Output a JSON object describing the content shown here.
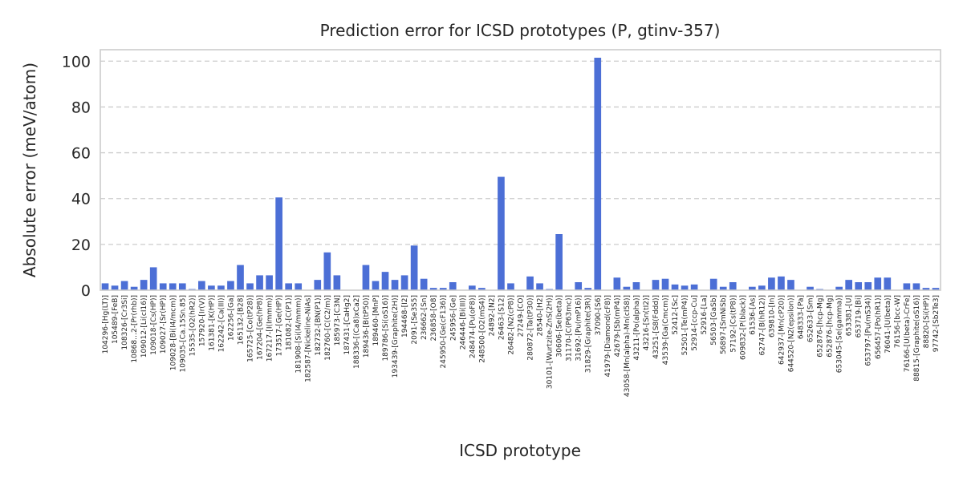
{
  "chart_data": {
    "type": "bar",
    "title": "Prediction error for ICSD prototypes (P, gtinv-357)",
    "xlabel": "ICSD prototype",
    "ylabel": "Absolute error (meV/atom)",
    "ylim": [
      0,
      105
    ],
    "yticks": [
      0,
      20,
      40,
      60,
      80,
      100
    ],
    "grid": "y-dashed",
    "bar_color": "#4c6fd6",
    "categories": [
      "104296-[Hg(LT)]",
      "105489-[FeB]",
      "108326-[Cr3Si]",
      "10868…2-[Pr(rhb)]",
      "109012-[Li(cI16)]",
      "109018-[Cs(HP)]",
      "109027-[Sr(HP)]",
      "109028-[Bi(I4/mcm)]",
      "109035-[Ca.15Sn.85]",
      "15535-[O2(hR2)]",
      "157920-[Ir(V)]",
      "161381-[K(HP)]",
      "162242-[Ca(III)]",
      "162256-[Ga]",
      "165132-[B28]",
      "165725-[Co(tP28)]",
      "167204-[Ge(hP8)]",
      "167217-[I(Immm)]",
      "173517-[Ge(HP)]",
      "181082-[C(P1)]",
      "181908-[Si(I4/mmm)]",
      "182587-[Nickeline-NiAs]",
      "182732-[BN(P1)]",
      "182760-[C(C2/m)]",
      "185973-[C3N]",
      "187431-[CaHg2]",
      "188336-[(Ca8)xCa2]",
      "189436-[B(tP50)]",
      "189460-[MnP]",
      "189786-[Si(oS16)]",
      "193439-[Graphite(2H)]",
      "194468-[I2]",
      "2091-[Se3S5]",
      "236662-[Sn]",
      "236858-[O8]",
      "245950-[Ge(cF136)]",
      "245956-[Ge]",
      "246446-[Bi(III)]",
      "248474-[Pu(oF8)]",
      "248500-[O2(mS4)]",
      "24892-[N2]",
      "26463-[S12]",
      "26482-[N2(cP8)]",
      "27249-[CO]",
      "280872-[Ta(tP30)]",
      "28540-[H2]",
      "30101-[Wurtzite-ZnS(2H)]",
      "30606-[Se(beta)]",
      "31170-[C(P63mc)]",
      "31692-[Pu(mP16)]",
      "31829-[Graphite(3R)]",
      "37090-[S6]",
      "41979-[Diamond(cF8)]",
      "42679-[Sb(mP4)]",
      "43058-[Mn(alpha)-Mn(cI58)]",
      "43211-[Po(alpha)]",
      "43216-[Sn(tI2)]",
      "43251-[S8(Fddd)]",
      "43539-[Ga(Cmcm)]",
      "52412-[Sc]",
      "52501-[Te(mP4)]",
      "52914-[ccp-Cu]",
      "52916-[La]",
      "56503-[GaSb]",
      "56897-[SmNiSb]",
      "57192-[Cs(tP8)]",
      "609832-[P(black)]",
      "61536-[As]",
      "62747-[B(hR12)]",
      "639810-[In]",
      "642937-[Mn(cP20)]",
      "644520-[N2(epsilon)]",
      "648333-[Pa]",
      "652633-[Sm]",
      "652876-[hcp-Mg]",
      "652876-[hcp-Mg]",
      "653045-[Se(gamma)]",
      "653381-[U]",
      "653719-[Bi]",
      "653797-[Pu(mS34)]",
      "656457-[Po(hR1)]",
      "76041-[U(beta)]",
      "76156-[bcc-W]",
      "76166-[U(beta)-CrFe]",
      "88815-[Graphite(oS16)]",
      "88820-[Si(HP)]",
      "97742-[Sb2Te3]"
    ],
    "values": [
      3,
      2,
      4,
      1.5,
      4.5,
      10,
      3,
      3,
      3,
      0.5,
      4,
      2,
      2,
      4,
      11,
      3,
      6.5,
      6.5,
      40.5,
      3,
      3,
      0,
      4.5,
      16.5,
      6.5,
      0,
      0,
      11,
      4,
      8,
      4.5,
      6.5,
      19.5,
      5,
      1,
      1,
      3.5,
      0,
      2,
      1,
      0,
      49.5,
      3,
      0,
      6,
      3,
      0.5,
      24.5,
      0,
      3.5,
      1,
      101.5,
      0,
      5.5,
      1.5,
      3.5,
      0,
      4.5,
      5,
      2.5,
      2,
      2.5,
      0,
      5,
      1.5,
      3.5,
      0,
      1.5,
      2,
      5.5,
      6,
      4.5,
      0,
      1.5,
      0.5,
      0,
      1.5,
      4.5,
      3.5,
      3.5,
      5.5,
      5.5,
      0,
      3,
      3,
      1,
      1
    ]
  }
}
